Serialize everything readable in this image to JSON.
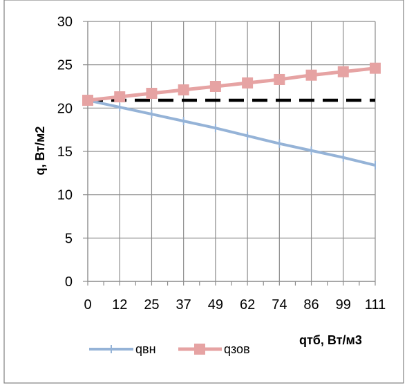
{
  "chart_data": {
    "type": "line",
    "xlabel": "qтб, Вт/м3",
    "ylabel": "q, Вт/м2",
    "ylim": [
      0,
      30
    ],
    "y_ticks": [
      "0",
      "5",
      "10",
      "15",
      "20",
      "25",
      "30"
    ],
    "categories": [
      "0",
      "12",
      "25",
      "37",
      "49",
      "62",
      "74",
      "86",
      "99",
      "111"
    ],
    "grid": true,
    "legend_position": "bottom-left",
    "series": [
      {
        "name": "qвн",
        "color": "#95B3D7",
        "marker": "plus",
        "values": [
          20.9,
          20.1,
          19.3,
          18.5,
          17.7,
          16.8,
          15.9,
          15.1,
          14.3,
          13.4
        ]
      },
      {
        "name": "qзов",
        "color": "#E6A3A3",
        "marker": "square",
        "values": [
          20.9,
          21.3,
          21.7,
          22.1,
          22.5,
          22.9,
          23.3,
          23.8,
          24.2,
          24.6
        ]
      }
    ],
    "reference_lines": [
      {
        "y": 20.9,
        "style": "dashed",
        "color": "#000000"
      }
    ]
  }
}
